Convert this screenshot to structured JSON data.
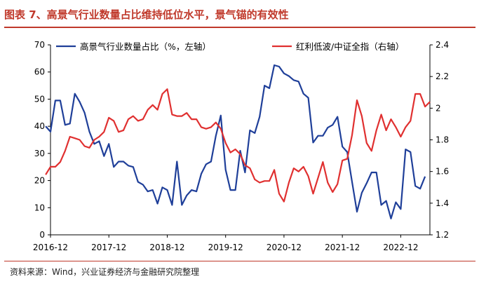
{
  "figure": {
    "title": "图表 7、高景气行业数量占比维持低位水平，景气锚的有效性",
    "source": "资料来源：Wind，兴业证券经济与金融研究院整理"
  },
  "colors": {
    "blue": "#1f3f99",
    "red": "#e03030",
    "accent": "#c0392b"
  },
  "chart_data": {
    "type": "line",
    "legend_placement": "top",
    "grid": false,
    "xticks": [
      "2016-12",
      "2017-12",
      "2018-12",
      "2019-12",
      "2020-12",
      "2021-12",
      "2022-12"
    ],
    "yticks_left": [
      "0",
      "10",
      "20",
      "30",
      "40",
      "50",
      "60",
      "70"
    ],
    "yticks_right": [
      "1.2",
      "1.4",
      "1.6",
      "1.8",
      "2",
      "2.2",
      "2.4"
    ],
    "ylim_left": [
      0,
      70
    ],
    "ylim_right": [
      1.2,
      2.4
    ],
    "series": [
      {
        "name": "高景气行业数量占比（%，左轴）",
        "axis": "left",
        "color": "#1f3f99",
        "x_start": "2016-11",
        "values": [
          40,
          38,
          49.5,
          49.5,
          40.5,
          41,
          52,
          49,
          45,
          38,
          33.5,
          34.5,
          29,
          33.5,
          25,
          27,
          27,
          25.5,
          25,
          19.5,
          18.5,
          16,
          16.5,
          11.5,
          17.5,
          16.5,
          11,
          27,
          11,
          14.5,
          16.5,
          16,
          22.5,
          26,
          27,
          36.5,
          44,
          24,
          16.5,
          16.5,
          31,
          23,
          38.5,
          37.5,
          43.5,
          55,
          54,
          62.5,
          62,
          59.5,
          58.5,
          57,
          56.5,
          52,
          50.5,
          34,
          36.5,
          36.5,
          39.5,
          40.5,
          43.5,
          32.5,
          30.5,
          19.5,
          8.5,
          15.5,
          19,
          23,
          23,
          11,
          12.5,
          6,
          12,
          9.5,
          31.5,
          30.5,
          18,
          17,
          21.5
        ]
      },
      {
        "name": "红利低波/中证全指（右轴）",
        "axis": "right",
        "color": "#e03030",
        "x_start": "2016-11",
        "values": [
          1.58,
          1.63,
          1.63,
          1.66,
          1.73,
          1.82,
          1.81,
          1.8,
          1.76,
          1.75,
          1.8,
          1.82,
          1.85,
          1.94,
          1.92,
          1.85,
          1.86,
          1.93,
          1.95,
          1.92,
          1.93,
          1.99,
          2.02,
          1.99,
          2.09,
          2.12,
          1.96,
          1.95,
          1.95,
          1.97,
          1.93,
          1.93,
          1.88,
          1.87,
          1.88,
          1.91,
          1.87,
          1.78,
          1.72,
          1.74,
          1.71,
          1.64,
          1.62,
          1.55,
          1.53,
          1.54,
          1.54,
          1.61,
          1.46,
          1.41,
          1.53,
          1.62,
          1.6,
          1.63,
          1.57,
          1.46,
          1.56,
          1.66,
          1.53,
          1.47,
          1.52,
          1.67,
          1.68,
          1.83,
          2.05,
          1.95,
          1.78,
          1.73,
          1.86,
          1.96,
          1.86,
          1.93,
          1.88,
          1.82,
          1.88,
          1.92,
          2.09,
          2.09,
          2.01,
          2.04
        ]
      }
    ]
  }
}
